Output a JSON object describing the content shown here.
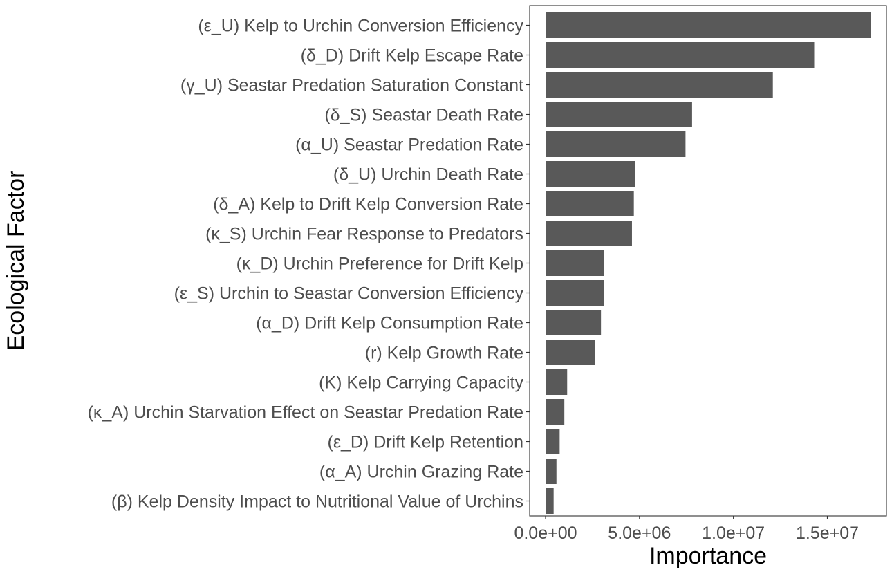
{
  "chart_data": {
    "type": "bar",
    "orientation": "horizontal",
    "title": "",
    "xlabel": "Importance",
    "ylabel": "Ecological Factor",
    "xlim": [
      0,
      18000000
    ],
    "x_ticks": [
      0,
      5000000,
      10000000,
      15000000
    ],
    "x_tick_labels": [
      "0.0e+00",
      "5.0e+06",
      "1.0e+07",
      "1.5e+07"
    ],
    "grid": false,
    "legend": "none",
    "bar_color": "#595959",
    "categories": [
      "(ε_U) Kelp to Urchin Conversion Efficiency",
      "(δ_D) Drift Kelp Escape Rate",
      "(γ_U) Seastar Predation Saturation Constant",
      "(δ_S) Seastar Death Rate",
      "(α_U) Seastar Predation Rate",
      "(δ_U) Urchin Death Rate",
      "(δ_A) Kelp to Drift Kelp Conversion Rate",
      "(κ_S) Urchin Fear Response to Predators",
      "(κ_D) Urchin Preference for Drift Kelp",
      "(ε_S) Urchin to Seastar Conversion Efficiency",
      "(α_D) Drift Kelp Consumption Rate",
      "(r) Kelp Growth Rate",
      "(K) Kelp Carrying Capacity",
      "(κ_A) Urchin Starvation Effect on Seastar Predation Rate",
      "(ε_D) Drift Kelp Retention",
      "(α_A) Urchin Grazing Rate",
      "(β) Kelp Density Impact to Nutritional Value of Urchins"
    ],
    "values": [
      17300000,
      14300000,
      12100000,
      7800000,
      7450000,
      4750000,
      4700000,
      4600000,
      3100000,
      3100000,
      2950000,
      2650000,
      1150000,
      1000000,
      750000,
      580000,
      430000
    ]
  }
}
